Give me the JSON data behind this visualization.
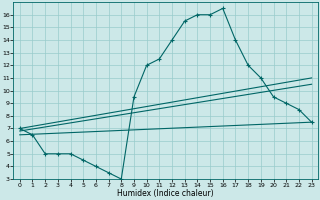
{
  "xlabel": "Humidex (Indice chaleur)",
  "background_color": "#cce8e8",
  "grid_color": "#99cccc",
  "line_color": "#006666",
  "xlim": [
    -0.5,
    23.5
  ],
  "ylim": [
    3,
    17
  ],
  "xticks": [
    0,
    1,
    2,
    3,
    4,
    5,
    6,
    7,
    8,
    9,
    10,
    11,
    12,
    13,
    14,
    15,
    16,
    17,
    18,
    19,
    20,
    21,
    22,
    23
  ],
  "yticks": [
    3,
    4,
    5,
    6,
    7,
    8,
    9,
    10,
    11,
    12,
    13,
    14,
    15,
    16
  ],
  "main_x": [
    0,
    1,
    2,
    3,
    4,
    5,
    6,
    7,
    8,
    9,
    10,
    11,
    12,
    13,
    14,
    15,
    16,
    17,
    18,
    19,
    20,
    21,
    22,
    23
  ],
  "main_y": [
    7.0,
    6.5,
    5.0,
    5.0,
    5.0,
    4.5,
    4.0,
    3.5,
    3.0,
    9.5,
    12.0,
    12.5,
    14.0,
    15.5,
    16.0,
    16.0,
    16.5,
    14.0,
    12.0,
    11.0,
    9.5,
    9.0,
    8.5,
    7.5
  ],
  "line2_x": [
    0,
    23
  ],
  "line2_y": [
    7.0,
    11.0
  ],
  "line3_x": [
    0,
    23
  ],
  "line3_y": [
    6.8,
    10.5
  ],
  "line4_x": [
    0,
    23
  ],
  "line4_y": [
    6.5,
    7.5
  ]
}
